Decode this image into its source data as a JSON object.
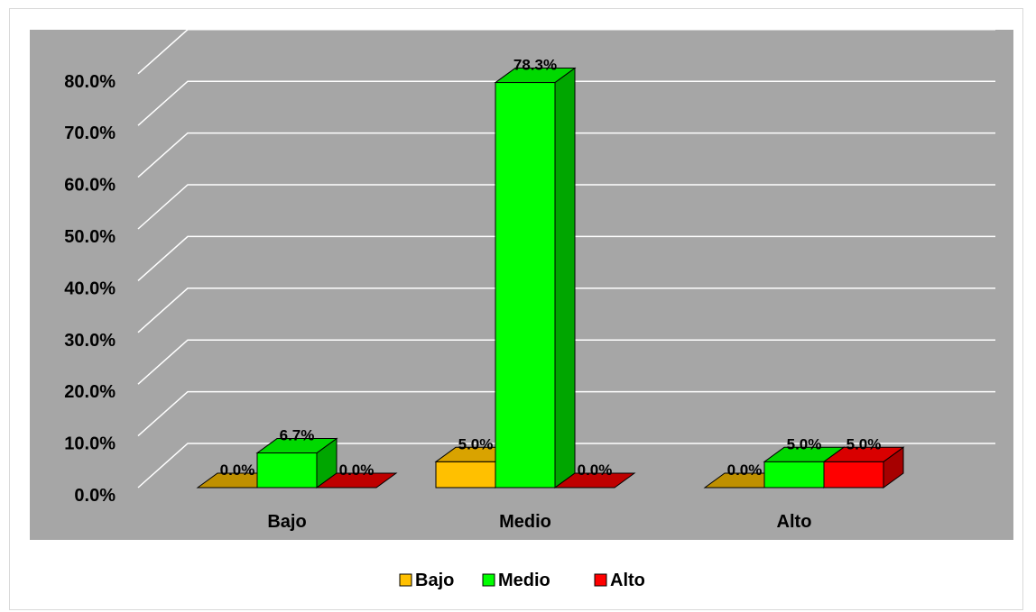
{
  "chart_data": {
    "type": "bar",
    "style": "3d-clustered-column",
    "title": "",
    "xlabel": "",
    "ylabel": "",
    "categories": [
      "Bajo",
      "Medio",
      "Alto"
    ],
    "series": [
      {
        "name": "Bajo",
        "values": [
          0.0,
          5.0,
          0.0
        ],
        "labels": [
          "0.0%",
          "5.0%",
          "0.0%"
        ],
        "color": "#ffc000"
      },
      {
        "name": "Medio",
        "values": [
          6.7,
          78.3,
          5.0
        ],
        "labels": [
          "6.7%",
          "78.3%",
          "5.0%"
        ],
        "color": "#00ff00"
      },
      {
        "name": "Alto",
        "values": [
          0.0,
          0.0,
          5.0
        ],
        "labels": [
          "0.0%",
          "0.0%",
          "5.0%"
        ],
        "color": "#ff0000"
      }
    ],
    "ylim": [
      0,
      80
    ],
    "yticks": [
      0,
      10,
      20,
      30,
      40,
      50,
      60,
      70,
      80
    ],
    "ytick_labels": [
      "0.0%",
      "10.0%",
      "20.0%",
      "30.0%",
      "40.0%",
      "50.0%",
      "60.0%",
      "70.0%",
      "80.0%"
    ],
    "grid": true,
    "legend": "bottom",
    "plot_background": "#a6a6a6",
    "gridline_color": "#ffffff"
  }
}
